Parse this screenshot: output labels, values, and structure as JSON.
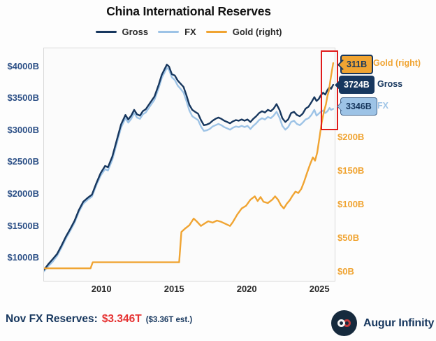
{
  "title": "China International Reserves",
  "chart_data": {
    "type": "line",
    "title": "China International Reserves",
    "x_range": [
      2006,
      2026
    ],
    "x_ticks": [
      {
        "v": 2010,
        "label": "2010"
      },
      {
        "v": 2015,
        "label": "2015"
      },
      {
        "v": 2020,
        "label": "2020"
      },
      {
        "v": 2025,
        "label": "2025"
      }
    ],
    "left_axis": {
      "range": [
        649,
        4296
      ],
      "color": "#2f5288",
      "ticks": [
        {
          "v": 1000,
          "label": "$1000B"
        },
        {
          "v": 1500,
          "label": "$1500B"
        },
        {
          "v": 2000,
          "label": "$2000B"
        },
        {
          "v": 2500,
          "label": "$2500B"
        },
        {
          "v": 3000,
          "label": "$3000B"
        },
        {
          "v": 3500,
          "label": "$3500B"
        },
        {
          "v": 4000,
          "label": "$4000B"
        }
      ]
    },
    "right_axis": {
      "range": [
        -12.5,
        333
      ],
      "color": "#f0a432",
      "ticks": [
        {
          "v": 0,
          "label": "$0B"
        },
        {
          "v": 50,
          "label": "$50B"
        },
        {
          "v": 100,
          "label": "$100B"
        },
        {
          "v": 150,
          "label": "$150B"
        },
        {
          "v": 200,
          "label": "$200B"
        }
      ]
    },
    "series": [
      {
        "id": "fx",
        "name": "FX",
        "axis": "left",
        "color": "#9dc3e6",
        "points": [
          [
            2006.0,
            800
          ],
          [
            2006.3,
            880
          ],
          [
            2006.6,
            950
          ],
          [
            2006.9,
            1040
          ],
          [
            2007.2,
            1170
          ],
          [
            2007.5,
            1310
          ],
          [
            2007.8,
            1430
          ],
          [
            2008.1,
            1560
          ],
          [
            2008.4,
            1730
          ],
          [
            2008.7,
            1860
          ],
          [
            2009.0,
            1920
          ],
          [
            2009.3,
            1970
          ],
          [
            2009.6,
            2150
          ],
          [
            2009.9,
            2300
          ],
          [
            2010.2,
            2400
          ],
          [
            2010.4,
            2380
          ],
          [
            2010.7,
            2550
          ],
          [
            2011.0,
            2800
          ],
          [
            2011.3,
            3050
          ],
          [
            2011.6,
            3200
          ],
          [
            2011.8,
            3130
          ],
          [
            2012.0,
            3190
          ],
          [
            2012.2,
            3280
          ],
          [
            2012.4,
            3210
          ],
          [
            2012.6,
            3190
          ],
          [
            2012.8,
            3260
          ],
          [
            2013.0,
            3290
          ],
          [
            2013.3,
            3390
          ],
          [
            2013.6,
            3490
          ],
          [
            2013.9,
            3680
          ],
          [
            2014.1,
            3830
          ],
          [
            2014.3,
            3920
          ],
          [
            2014.45,
            3990
          ],
          [
            2014.6,
            3960
          ],
          [
            2014.8,
            3840
          ],
          [
            2015.0,
            3800
          ],
          [
            2015.2,
            3710
          ],
          [
            2015.4,
            3660
          ],
          [
            2015.6,
            3600
          ],
          [
            2015.8,
            3470
          ],
          [
            2016.0,
            3320
          ],
          [
            2016.2,
            3230
          ],
          [
            2016.4,
            3200
          ],
          [
            2016.6,
            3170
          ],
          [
            2016.8,
            3070
          ],
          [
            2017.0,
            3000
          ],
          [
            2017.2,
            3010
          ],
          [
            2017.4,
            3030
          ],
          [
            2017.6,
            3070
          ],
          [
            2017.8,
            3090
          ],
          [
            2018.0,
            3110
          ],
          [
            2018.2,
            3090
          ],
          [
            2018.4,
            3060
          ],
          [
            2018.6,
            3040
          ],
          [
            2018.8,
            3020
          ],
          [
            2019.0,
            3050
          ],
          [
            2019.2,
            3070
          ],
          [
            2019.4,
            3060
          ],
          [
            2019.6,
            3080
          ],
          [
            2019.8,
            3060
          ],
          [
            2020.0,
            3080
          ],
          [
            2020.2,
            3030
          ],
          [
            2020.4,
            3080
          ],
          [
            2020.6,
            3120
          ],
          [
            2020.8,
            3170
          ],
          [
            2021.0,
            3200
          ],
          [
            2021.2,
            3180
          ],
          [
            2021.4,
            3220
          ],
          [
            2021.6,
            3200
          ],
          [
            2021.8,
            3240
          ],
          [
            2022.0,
            3300
          ],
          [
            2022.2,
            3210
          ],
          [
            2022.4,
            3080
          ],
          [
            2022.6,
            3020
          ],
          [
            2022.8,
            3060
          ],
          [
            2023.0,
            3140
          ],
          [
            2023.2,
            3160
          ],
          [
            2023.4,
            3110
          ],
          [
            2023.6,
            3090
          ],
          [
            2023.8,
            3130
          ],
          [
            2024.0,
            3180
          ],
          [
            2024.2,
            3200
          ],
          [
            2024.4,
            3250
          ],
          [
            2024.6,
            3330
          ],
          [
            2024.75,
            3240
          ],
          [
            2024.9,
            3270
          ],
          [
            2025.05,
            3300
          ],
          [
            2025.2,
            3320
          ],
          [
            2025.35,
            3280
          ],
          [
            2025.5,
            3310
          ],
          [
            2025.65,
            3360
          ],
          [
            2025.75,
            3330
          ],
          [
            2025.9,
            3346
          ]
        ]
      },
      {
        "id": "gross",
        "name": "Gross",
        "axis": "left",
        "color": "#17375e",
        "points": [
          [
            2006.0,
            820
          ],
          [
            2006.3,
            910
          ],
          [
            2006.6,
            990
          ],
          [
            2006.9,
            1070
          ],
          [
            2007.2,
            1200
          ],
          [
            2007.5,
            1340
          ],
          [
            2007.8,
            1460
          ],
          [
            2008.1,
            1590
          ],
          [
            2008.4,
            1760
          ],
          [
            2008.7,
            1890
          ],
          [
            2009.0,
            1950
          ],
          [
            2009.3,
            2000
          ],
          [
            2009.6,
            2180
          ],
          [
            2009.9,
            2340
          ],
          [
            2010.2,
            2450
          ],
          [
            2010.4,
            2430
          ],
          [
            2010.7,
            2600
          ],
          [
            2011.0,
            2850
          ],
          [
            2011.3,
            3100
          ],
          [
            2011.6,
            3250
          ],
          [
            2011.8,
            3180
          ],
          [
            2012.0,
            3240
          ],
          [
            2012.2,
            3330
          ],
          [
            2012.4,
            3260
          ],
          [
            2012.6,
            3240
          ],
          [
            2012.8,
            3310
          ],
          [
            2013.0,
            3340
          ],
          [
            2013.3,
            3440
          ],
          [
            2013.6,
            3540
          ],
          [
            2013.9,
            3730
          ],
          [
            2014.1,
            3880
          ],
          [
            2014.3,
            3970
          ],
          [
            2014.45,
            4040
          ],
          [
            2014.6,
            4010
          ],
          [
            2014.8,
            3890
          ],
          [
            2015.0,
            3870
          ],
          [
            2015.2,
            3790
          ],
          [
            2015.4,
            3740
          ],
          [
            2015.6,
            3690
          ],
          [
            2015.8,
            3560
          ],
          [
            2016.0,
            3410
          ],
          [
            2016.2,
            3330
          ],
          [
            2016.4,
            3300
          ],
          [
            2016.6,
            3270
          ],
          [
            2016.8,
            3170
          ],
          [
            2017.0,
            3090
          ],
          [
            2017.2,
            3100
          ],
          [
            2017.4,
            3120
          ],
          [
            2017.6,
            3160
          ],
          [
            2017.8,
            3190
          ],
          [
            2018.0,
            3210
          ],
          [
            2018.2,
            3190
          ],
          [
            2018.4,
            3160
          ],
          [
            2018.6,
            3140
          ],
          [
            2018.8,
            3120
          ],
          [
            2019.0,
            3150
          ],
          [
            2019.2,
            3170
          ],
          [
            2019.4,
            3160
          ],
          [
            2019.6,
            3180
          ],
          [
            2019.8,
            3160
          ],
          [
            2020.0,
            3180
          ],
          [
            2020.2,
            3140
          ],
          [
            2020.4,
            3190
          ],
          [
            2020.6,
            3230
          ],
          [
            2020.8,
            3280
          ],
          [
            2021.0,
            3310
          ],
          [
            2021.2,
            3290
          ],
          [
            2021.4,
            3330
          ],
          [
            2021.6,
            3310
          ],
          [
            2021.8,
            3350
          ],
          [
            2022.0,
            3420
          ],
          [
            2022.2,
            3330
          ],
          [
            2022.4,
            3200
          ],
          [
            2022.6,
            3140
          ],
          [
            2022.8,
            3180
          ],
          [
            2023.0,
            3280
          ],
          [
            2023.2,
            3300
          ],
          [
            2023.4,
            3250
          ],
          [
            2023.6,
            3230
          ],
          [
            2023.8,
            3270
          ],
          [
            2024.0,
            3350
          ],
          [
            2024.2,
            3380
          ],
          [
            2024.4,
            3450
          ],
          [
            2024.6,
            3530
          ],
          [
            2024.75,
            3470
          ],
          [
            2024.9,
            3500
          ],
          [
            2025.05,
            3560
          ],
          [
            2025.2,
            3600
          ],
          [
            2025.35,
            3570
          ],
          [
            2025.5,
            3640
          ],
          [
            2025.65,
            3690
          ],
          [
            2025.75,
            3660
          ],
          [
            2025.9,
            3724
          ]
        ]
      },
      {
        "id": "gold",
        "name": "Gold (right)",
        "axis": "right",
        "color": "#f0a432",
        "points": [
          [
            2006.0,
            6
          ],
          [
            2007.0,
            6
          ],
          [
            2008.0,
            6
          ],
          [
            2009.2,
            6
          ],
          [
            2009.35,
            15
          ],
          [
            2010.0,
            15
          ],
          [
            2011.0,
            15
          ],
          [
            2012.0,
            15
          ],
          [
            2013.0,
            15
          ],
          [
            2014.0,
            15
          ],
          [
            2015.3,
            15
          ],
          [
            2015.45,
            60
          ],
          [
            2015.7,
            65
          ],
          [
            2016.0,
            70
          ],
          [
            2016.3,
            80
          ],
          [
            2016.5,
            76
          ],
          [
            2016.8,
            69
          ],
          [
            2017.0,
            72
          ],
          [
            2017.3,
            76
          ],
          [
            2017.6,
            74
          ],
          [
            2017.9,
            77
          ],
          [
            2018.2,
            75
          ],
          [
            2018.5,
            72
          ],
          [
            2018.8,
            69
          ],
          [
            2019.0,
            75
          ],
          [
            2019.3,
            86
          ],
          [
            2019.6,
            95
          ],
          [
            2019.9,
            99
          ],
          [
            2020.2,
            108
          ],
          [
            2020.5,
            113
          ],
          [
            2020.7,
            106
          ],
          [
            2020.9,
            112
          ],
          [
            2021.1,
            105
          ],
          [
            2021.4,
            103
          ],
          [
            2021.7,
            108
          ],
          [
            2021.9,
            113
          ],
          [
            2022.1,
            108
          ],
          [
            2022.3,
            100
          ],
          [
            2022.5,
            95
          ],
          [
            2022.7,
            102
          ],
          [
            2022.9,
            107
          ],
          [
            2023.1,
            114
          ],
          [
            2023.3,
            120
          ],
          [
            2023.5,
            118
          ],
          [
            2023.7,
            124
          ],
          [
            2023.9,
            135
          ],
          [
            2024.1,
            148
          ],
          [
            2024.3,
            160
          ],
          [
            2024.5,
            171
          ],
          [
            2024.65,
            166
          ],
          [
            2024.8,
            178
          ],
          [
            2024.95,
            200
          ],
          [
            2025.1,
            222
          ],
          [
            2025.25,
            238
          ],
          [
            2025.4,
            250
          ],
          [
            2025.5,
            262
          ],
          [
            2025.6,
            270
          ],
          [
            2025.7,
            285
          ],
          [
            2025.8,
            298
          ],
          [
            2025.9,
            311
          ]
        ]
      }
    ],
    "legend_position": "top",
    "grid": false
  },
  "highlight_box_color": "#e01a1a",
  "badges": [
    {
      "id": "gold",
      "value": "311B",
      "label": "Gold (right)"
    },
    {
      "id": "gross",
      "value": "3724B",
      "label": "Gross"
    },
    {
      "id": "fx",
      "value": "3346B",
      "label": "FX"
    }
  ],
  "footer": {
    "prefix": "Nov FX Reserves:",
    "value": "$3.346T",
    "estimate": "($3.36T est.)",
    "brand": "Augur Infinity"
  }
}
